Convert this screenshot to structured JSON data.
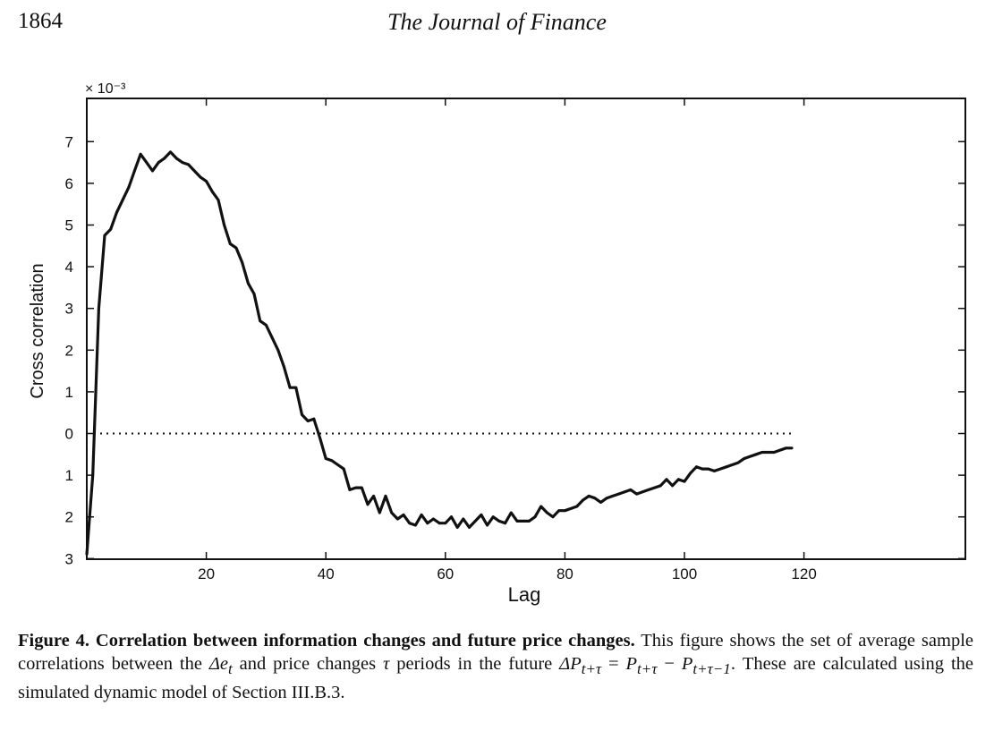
{
  "header": {
    "page_number": "1864",
    "journal": "The Journal of Finance"
  },
  "chart_data": {
    "type": "line",
    "title": "",
    "xlabel": "Lag",
    "ylabel": "Cross correlation",
    "exponent_label": "× 10⁻³",
    "xlim": [
      0,
      122
    ],
    "ylim": [
      -3,
      8
    ],
    "x_ticks": [
      20,
      40,
      60,
      80,
      100,
      120
    ],
    "x_tick_labels": [
      "20",
      "40",
      "60",
      "80",
      "100",
      "120"
    ],
    "y_ticks": [
      7,
      6,
      5,
      4,
      3,
      2,
      1,
      0,
      -1,
      -2,
      -3
    ],
    "y_tick_labels": [
      "7",
      "6",
      "5",
      "4",
      "3",
      "2",
      "1",
      "0",
      "1",
      "2",
      "3"
    ],
    "zero_line": "dotted",
    "grid": false,
    "series": [
      {
        "color": "#111111",
        "x": [
          0,
          1,
          2,
          3,
          4,
          5,
          6,
          7,
          8,
          9,
          10,
          11,
          12,
          13,
          14,
          15,
          16,
          17,
          18,
          19,
          20,
          21,
          22,
          23,
          24,
          25,
          26,
          27,
          28,
          29,
          30,
          31,
          32,
          33,
          34,
          35,
          36,
          37,
          38,
          39,
          40,
          41,
          42,
          43,
          44,
          45,
          46,
          47,
          48,
          49,
          50,
          51,
          52,
          53,
          54,
          55,
          56,
          57,
          58,
          59,
          60,
          61,
          62,
          63,
          64,
          65,
          66,
          67,
          68,
          69,
          70,
          71,
          72,
          73,
          74,
          75,
          76,
          77,
          78,
          79,
          80,
          81,
          82,
          83,
          84,
          85,
          86,
          87,
          88,
          89,
          90,
          91,
          92,
          93,
          94,
          95,
          96,
          97,
          98,
          99,
          100,
          101,
          102,
          103,
          104,
          105,
          106,
          107,
          108,
          109,
          110,
          111,
          112,
          113,
          114,
          115,
          116,
          117,
          118
        ],
        "y": [
          -2.9,
          -1.0,
          3.0,
          4.75,
          4.9,
          5.3,
          5.6,
          5.9,
          6.3,
          6.7,
          6.5,
          6.3,
          6.5,
          6.6,
          6.75,
          6.6,
          6.5,
          6.45,
          6.3,
          6.15,
          6.05,
          5.8,
          5.6,
          5.0,
          4.55,
          4.45,
          4.1,
          3.6,
          3.35,
          2.7,
          2.6,
          2.3,
          2.0,
          1.6,
          1.1,
          1.1,
          0.45,
          0.3,
          0.35,
          -0.1,
          -0.6,
          -0.65,
          -0.75,
          -0.85,
          -1.35,
          -1.3,
          -1.3,
          -1.7,
          -1.5,
          -1.9,
          -1.5,
          -1.9,
          -2.05,
          -1.95,
          -2.15,
          -2.2,
          -1.95,
          -2.15,
          -2.05,
          -2.15,
          -2.15,
          -2.0,
          -2.25,
          -2.05,
          -2.25,
          -2.1,
          -1.95,
          -2.2,
          -2.0,
          -2.1,
          -2.15,
          -1.9,
          -2.1,
          -2.1,
          -2.1,
          -2.0,
          -1.75,
          -1.9,
          -2.0,
          -1.85,
          -1.85,
          -1.8,
          -1.75,
          -1.6,
          -1.5,
          -1.55,
          -1.65,
          -1.55,
          -1.5,
          -1.45,
          -1.4,
          -1.35,
          -1.45,
          -1.4,
          -1.35,
          -1.3,
          -1.25,
          -1.1,
          -1.25,
          -1.1,
          -1.15,
          -0.95,
          -0.8,
          -0.85,
          -0.85,
          -0.9,
          -0.85,
          -0.8,
          -0.75,
          -0.7,
          -0.6,
          -0.55,
          -0.5,
          -0.45,
          -0.45,
          -0.45,
          -0.4,
          -0.35,
          -0.35
        ]
      }
    ]
  },
  "caption": {
    "figure_title": "Figure 4. Correlation between information changes and future price changes.",
    "text_before_math": " This figure shows the set of average sample correlations between the ",
    "math_delta_e": "Δe",
    "math_delta_e_sub": "t",
    "text_middle": " and price changes ",
    "math_tau": "τ",
    "text_periods": " periods in the future ",
    "math_formula_a": "ΔP",
    "math_formula_a_sub": "t+τ",
    "math_formula_eq": " = ",
    "math_formula_b": "P",
    "math_formula_b_sub": "t+τ",
    "math_formula_minus": " − ",
    "math_formula_c": "P",
    "math_formula_c_sub": "t+τ−1",
    "text_after_math": ". These are calculated using the simulated dynamic model of Section III.B.3."
  }
}
